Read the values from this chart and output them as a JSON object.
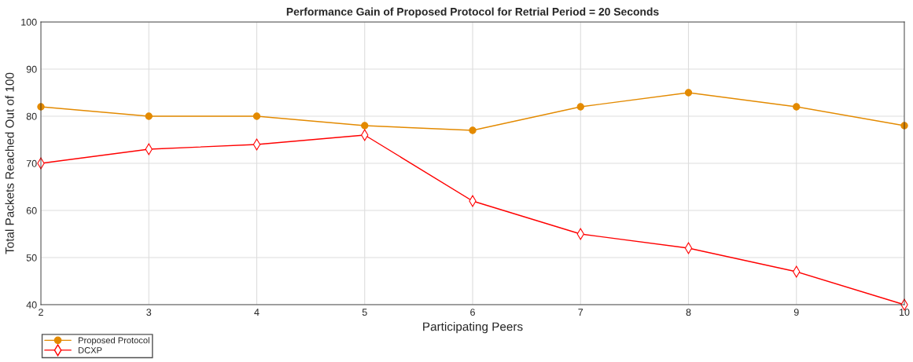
{
  "chart_data": {
    "type": "line",
    "title": "Performance Gain of Proposed Protocol for Retrial Period = 20 Seconds",
    "xlabel": "Participating Peers",
    "ylabel": "Total Packets Reached Out of 100",
    "x": [
      2,
      3,
      4,
      5,
      6,
      7,
      8,
      9,
      10
    ],
    "series": [
      {
        "name": "Proposed Protocol",
        "color": "#e38a00",
        "marker": "circle",
        "values": [
          82,
          80,
          80,
          78,
          77,
          82,
          85,
          82,
          78
        ]
      },
      {
        "name": "DCXP",
        "color": "#ff0000",
        "marker": "diamond",
        "values": [
          70,
          73,
          74,
          76,
          62,
          55,
          52,
          47,
          40
        ]
      }
    ],
    "xlim": [
      2,
      10
    ],
    "xticks": [
      2,
      3,
      4,
      5,
      6,
      7,
      8,
      9,
      10
    ],
    "ylim": [
      40,
      100
    ],
    "yticks": [
      40,
      50,
      60,
      70,
      80,
      90,
      100
    ],
    "grid": true,
    "legend": "bottom left",
    "line_style": "solid"
  }
}
